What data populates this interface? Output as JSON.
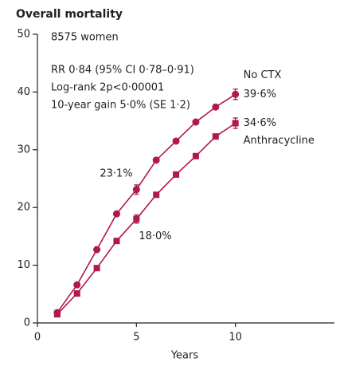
{
  "chart_data": {
    "type": "line",
    "title": "Overall mortality",
    "x_label": "Years",
    "annotations": [
      "8575 women",
      "RR 0·84 (95% CI 0·78–0·91)",
      "Log-rank 2p<0·00001",
      "10-year gain 5·0% (SE 1·2)"
    ],
    "x": [
      1,
      2,
      3,
      4,
      5,
      6,
      7,
      8,
      9,
      10
    ],
    "series": [
      {
        "name": "No CTX",
        "color": "#b0194a",
        "marker": "circle",
        "values": [
          1.8,
          6.6,
          12.7,
          18.9,
          23.1,
          28.2,
          31.5,
          34.8,
          37.4,
          39.6
        ],
        "errors": [
          null,
          null,
          null,
          null,
          0.8,
          null,
          null,
          null,
          null,
          0.9
        ],
        "value_labels": [
          null,
          null,
          null,
          null,
          "23·1%",
          null,
          null,
          null,
          null,
          "39·6%"
        ]
      },
      {
        "name": "Anthracycline",
        "color": "#b0194a",
        "marker": "square",
        "values": [
          1.5,
          5.1,
          9.5,
          14.2,
          18.0,
          22.2,
          25.7,
          28.9,
          32.3,
          34.6
        ],
        "errors": [
          null,
          null,
          null,
          null,
          0.7,
          null,
          null,
          null,
          null,
          0.9
        ],
        "value_labels": [
          null,
          null,
          null,
          null,
          "18·0%",
          null,
          null,
          null,
          null,
          "34·6%"
        ]
      }
    ],
    "xlim": [
      0,
      15
    ],
    "ylim": [
      0,
      50
    ],
    "xticks": [
      0,
      5,
      10
    ],
    "yticks": [
      0,
      10,
      20,
      30,
      40,
      50
    ],
    "grid": false
  }
}
